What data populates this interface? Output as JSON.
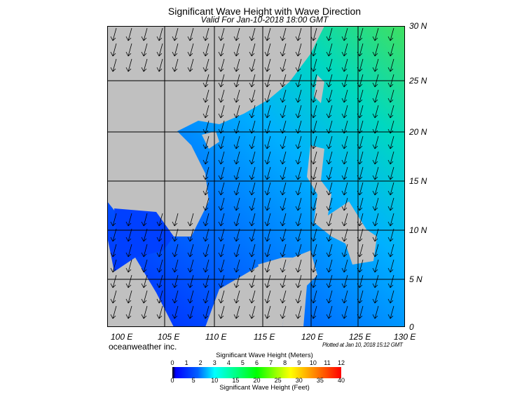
{
  "title": "Significant Wave Height with Wave Direction",
  "subtitle": "Valid For Jan-10-2018 18:00 GMT",
  "lat_labels": [
    "30 N",
    "25 N",
    "20 N",
    "15 N",
    "10 N",
    "5 N",
    "0"
  ],
  "lon_labels": [
    "100 E",
    "105 E",
    "110 E",
    "115 E",
    "120 E",
    "125 E",
    "130 E"
  ],
  "brand": "oceanweather inc.",
  "plotted": "Plotted at Jan 10, 2018 15:12 GMT",
  "colorbar": {
    "title_meters": "Significant Wave Height (Meters)",
    "title_feet": "Significant Wave Height (Feet)",
    "meters": [
      "0",
      "1",
      "2",
      "3",
      "4",
      "5",
      "6",
      "7",
      "8",
      "9",
      "10",
      "11",
      "12"
    ],
    "feet": [
      "0",
      "5",
      "10",
      "15",
      "20",
      "25",
      "30",
      "35",
      "40"
    ]
  },
  "colors": {
    "land": "#c0c0c0",
    "ocean_low": "#0030ff",
    "ocean_mid": "#0090ff",
    "ocean_high": "#00e0a0"
  }
}
